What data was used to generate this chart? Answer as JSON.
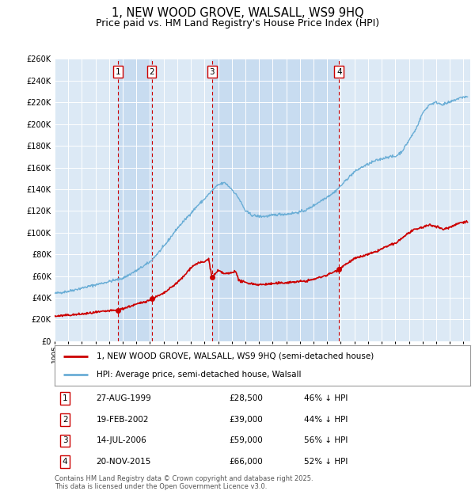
{
  "title": "1, NEW WOOD GROVE, WALSALL, WS9 9HQ",
  "subtitle": "Price paid vs. HM Land Registry's House Price Index (HPI)",
  "background_color": "#ffffff",
  "plot_bg_color": "#dce9f5",
  "grid_color": "#ffffff",
  "ylim": [
    0,
    260000
  ],
  "sales": [
    {
      "num": 1,
      "date_label": "27-AUG-1999",
      "date_x": 1999.65,
      "price": 28500,
      "pct": "46% ↓ HPI"
    },
    {
      "num": 2,
      "date_label": "19-FEB-2002",
      "date_x": 2002.12,
      "price": 39000,
      "pct": "44% ↓ HPI"
    },
    {
      "num": 3,
      "date_label": "14-JUL-2006",
      "date_x": 2006.54,
      "price": 59000,
      "pct": "56% ↓ HPI"
    },
    {
      "num": 4,
      "date_label": "20-NOV-2015",
      "date_x": 2015.88,
      "price": 66000,
      "pct": "52% ↓ HPI"
    }
  ],
  "hpi_color": "#6baed6",
  "sale_color": "#cc0000",
  "vline_color": "#cc0000",
  "shade_color": "#c8dcf0",
  "legend_label_sale": "1, NEW WOOD GROVE, WALSALL, WS9 9HQ (semi-detached house)",
  "legend_label_hpi": "HPI: Average price, semi-detached house, Walsall",
  "footer": "Contains HM Land Registry data © Crown copyright and database right 2025.\nThis data is licensed under the Open Government Licence v3.0.",
  "xlim_left": 1995.0,
  "xlim_right": 2025.5,
  "hpi_knots_x": [
    1995,
    1996,
    1997,
    1998,
    1999,
    2000,
    2001,
    2002,
    2003,
    2004,
    2005,
    2005.5,
    2006,
    2006.5,
    2007,
    2007.5,
    2008,
    2008.5,
    2009,
    2009.5,
    2010,
    2010.5,
    2011,
    2011.5,
    2012,
    2012.5,
    2013,
    2013.5,
    2014,
    2014.5,
    2015,
    2015.5,
    2016,
    2016.5,
    2017,
    2017.5,
    2018,
    2018.5,
    2019,
    2019.5,
    2020,
    2020.5,
    2021,
    2021.5,
    2022,
    2022.5,
    2023,
    2023.5,
    2024,
    2024.5,
    2025
  ],
  "hpi_knots_y": [
    44000,
    46000,
    49000,
    52000,
    55000,
    58000,
    65000,
    73000,
    87000,
    104000,
    118000,
    125000,
    131000,
    138000,
    144000,
    146000,
    140000,
    132000,
    120000,
    116000,
    115000,
    115000,
    116000,
    117000,
    117000,
    118000,
    119000,
    121000,
    125000,
    129000,
    133000,
    137000,
    143000,
    150000,
    156000,
    160000,
    163000,
    166000,
    168000,
    170000,
    170000,
    175000,
    185000,
    195000,
    210000,
    218000,
    220000,
    218000,
    220000,
    223000,
    225000
  ],
  "sale_knots_x": [
    1995,
    1996,
    1997,
    1998,
    1999,
    1999.65,
    2000,
    2001,
    2002,
    2002.12,
    2003,
    2004,
    2004.5,
    2005,
    2005.5,
    2006,
    2006.3,
    2006.54,
    2006.8,
    2007,
    2007.5,
    2008,
    2008.3,
    2008.5,
    2009,
    2009.5,
    2010,
    2010.5,
    2011,
    2011.5,
    2012,
    2012.5,
    2013,
    2013.5,
    2014,
    2014.5,
    2015,
    2015.88,
    2016,
    2016.5,
    2017,
    2017.5,
    2018,
    2018.5,
    2019,
    2019.5,
    2020,
    2020.5,
    2021,
    2021.5,
    2022,
    2022.5,
    2023,
    2023.5,
    2024,
    2024.5,
    2025
  ],
  "sale_knots_y": [
    23000,
    24000,
    25000,
    26500,
    28000,
    28500,
    30000,
    34000,
    38000,
    39000,
    44000,
    54000,
    60000,
    68000,
    72000,
    73000,
    76000,
    59000,
    62000,
    65000,
    62000,
    63000,
    65000,
    56000,
    54000,
    53000,
    52000,
    52500,
    53000,
    53500,
    54000,
    54500,
    55000,
    55500,
    57000,
    59000,
    61000,
    66000,
    68000,
    72000,
    76000,
    78000,
    80000,
    82000,
    85000,
    88000,
    90000,
    95000,
    100000,
    103000,
    105000,
    107000,
    106000,
    103000,
    105000,
    108000,
    110000
  ]
}
